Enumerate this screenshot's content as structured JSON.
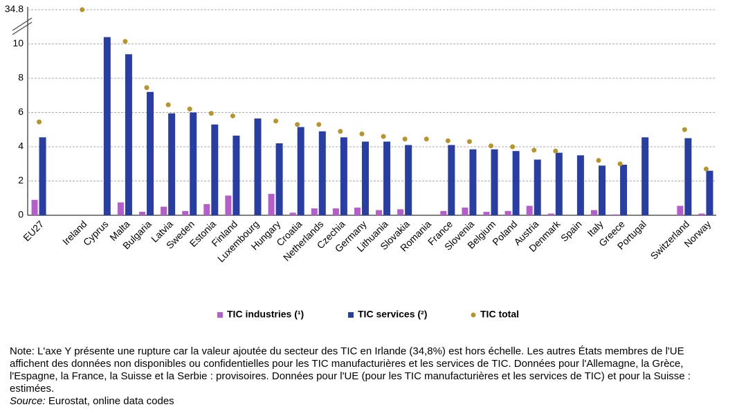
{
  "chart_data": {
    "type": "bar",
    "categories": [
      "EU27",
      null,
      "Ireland",
      "Cyprus",
      "Malta",
      "Bulgaria",
      "Latvia",
      "Sweden",
      "Estonia",
      "Finland",
      "Luxembourg",
      "Hungary",
      "Croatia",
      "Netherlands",
      "Czechia",
      "Germany",
      "Lithuania",
      "Slovakia",
      "Romania",
      "France",
      "Slovenia",
      "Belgium",
      "Poland",
      "Austria",
      "Denmark",
      "Spain",
      "Italy",
      "Greece",
      "Portugal",
      null,
      "Switzerland",
      "Norway"
    ],
    "series": [
      {
        "name": "TIC industries (¹)",
        "color": "#b55ecb",
        "mark": "bar",
        "values": [
          0.9,
          null,
          null,
          null,
          0.75,
          0.2,
          0.5,
          0.25,
          0.65,
          1.15,
          null,
          1.25,
          0.15,
          0.4,
          0.4,
          0.45,
          0.3,
          0.35,
          null,
          0.25,
          0.45,
          0.2,
          0.25,
          0.55,
          0.1,
          null,
          0.3,
          0.05,
          null,
          null,
          0.55,
          0.1
        ]
      },
      {
        "name": "TIC services (²)",
        "color": "#283ea3",
        "mark": "bar",
        "values": [
          4.55,
          null,
          null,
          10.4,
          9.4,
          7.2,
          5.95,
          6.0,
          5.3,
          4.65,
          5.65,
          4.2,
          5.15,
          4.9,
          4.55,
          4.3,
          4.3,
          4.1,
          null,
          4.1,
          3.85,
          3.85,
          3.75,
          3.25,
          3.65,
          3.5,
          2.9,
          2.95,
          4.55,
          null,
          4.5,
          2.6
        ]
      },
      {
        "name": "TIC total",
        "color": "#b8952a",
        "mark": "dot",
        "values": [
          5.45,
          null,
          34.8,
          null,
          10.15,
          7.45,
          6.45,
          6.2,
          5.95,
          5.8,
          null,
          5.5,
          5.3,
          5.3,
          4.9,
          4.75,
          4.6,
          4.45,
          4.45,
          4.35,
          4.3,
          4.05,
          4.0,
          3.8,
          3.75,
          null,
          3.2,
          3.0,
          null,
          null,
          5.0,
          2.7
        ]
      }
    ],
    "ylim": [
      0,
      12
    ],
    "yticks": [
      0,
      2,
      4,
      6,
      8,
      10,
      34.8
    ],
    "y_break": true,
    "grid": true,
    "note": "Note: L'axe Y présente une rupture car la valeur ajoutée du secteur des TIC en Irlande (34,8%) est hors échelle. Les autres États membres de l'UE affichent des données non disponibles ou confidentielles pour les TIC manufacturières et les services de TIC. Données pour l'Allemagne, la Grèce, l'Espagne, la France, la Suisse et la Serbie : provisoires. Données pour l'UE (pour les TIC manufacturières et les services de TIC) et pour la Suisse : estimées.",
    "source_label": "Source:",
    "source": "Eurostat, online data codes"
  }
}
